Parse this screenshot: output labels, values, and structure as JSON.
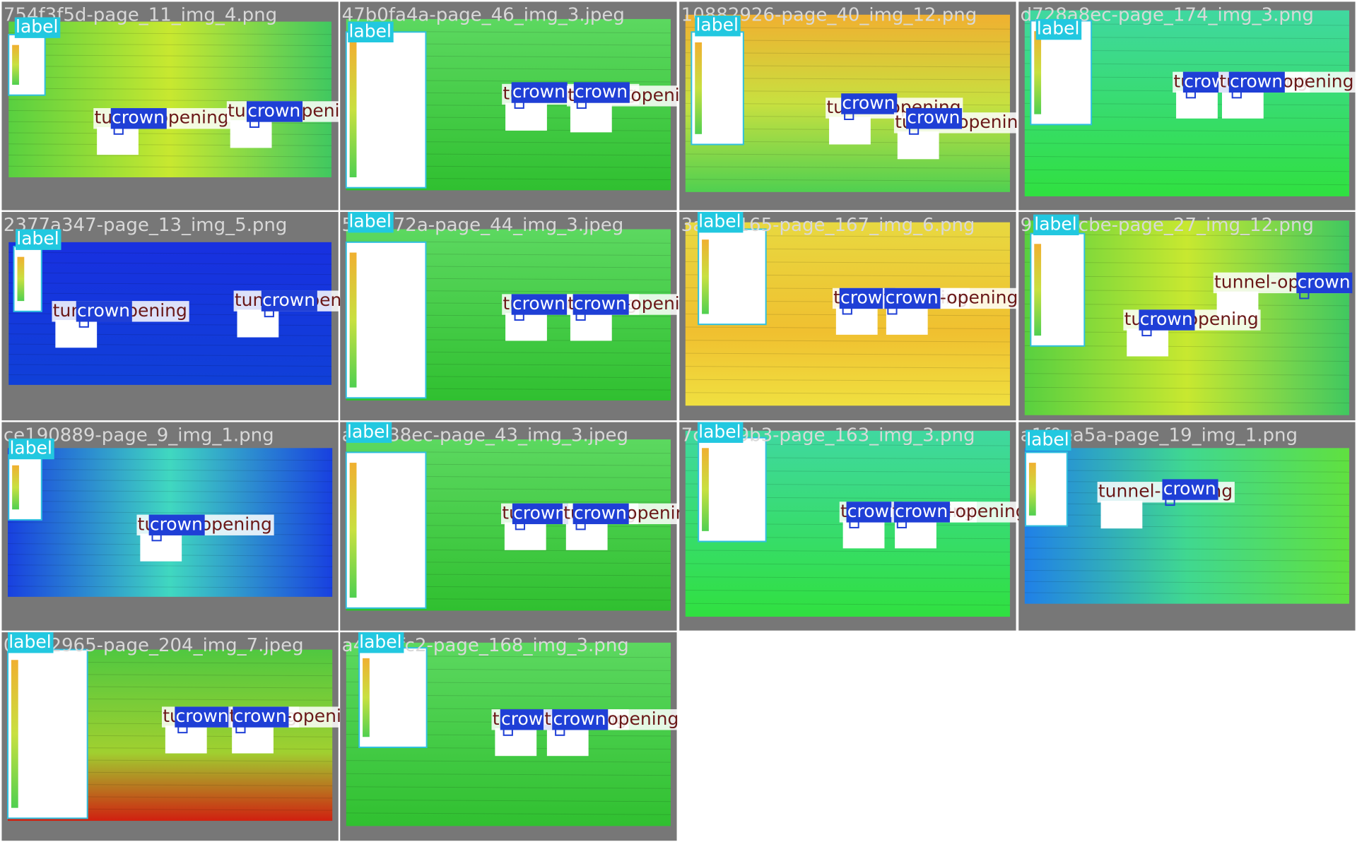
{
  "tiles": [
    {
      "filename": "754f3f5d-page_11_img_4.png",
      "labels": [
        "label",
        "tunnel-opening",
        "crown",
        "tunnel-opening",
        "crown"
      ]
    },
    {
      "filename": "47b0fa4a-page_46_img_3.jpeg",
      "labels": [
        "label",
        "tunnel-opening",
        "crown",
        "tunnel-opening",
        "crown"
      ]
    },
    {
      "filename": "10882926-page_40_img_12.png",
      "labels": [
        "label",
        "tunnel-opening",
        "crown",
        "tunnel-opening",
        "crown"
      ]
    },
    {
      "filename": "d728a8ec-page_174_img_3.png",
      "labels": [
        "label",
        "tunnel-opening",
        "crown",
        "tunnel-opening",
        "crown"
      ]
    },
    {
      "filename": "2377a347-page_13_img_5.png",
      "labels": [
        "label",
        "tunnel-opening",
        "crown",
        "tunnel-opening",
        "crown"
      ]
    },
    {
      "filename": "5f0c872a-page_44_img_3.jpeg",
      "labels": [
        "label",
        "tunnel-opening",
        "crown",
        "tunnel-opening",
        "crown"
      ]
    },
    {
      "filename": "3a1c7165-page_167_img_6.png",
      "labels": [
        "label",
        "tunnel-opening",
        "crown",
        "tunnel-opening",
        "crown"
      ]
    },
    {
      "filename": "9b4e2cbe-page_27_img_12.png",
      "labels": [
        "label",
        "tunnel-opening",
        "crown",
        "tunnel-opening",
        "crown"
      ]
    },
    {
      "filename": "ce190889-page_9_img_1.png",
      "labels": [
        "label",
        "tunnel-opening",
        "crown"
      ]
    },
    {
      "filename": "a6d438ec-page_43_img_3.jpeg",
      "labels": [
        "label",
        "tunnel-opening",
        "crown",
        "tunnel-opening",
        "crown"
      ]
    },
    {
      "filename": "7c52e9b3-page_163_img_3.png",
      "labels": [
        "label",
        "tunnel-opening",
        "crown",
        "tunnel-opening",
        "crown"
      ]
    },
    {
      "filename": "a1f0ea5a-page_19_img_1.png",
      "labels": [
        "label",
        "tunnel-opening",
        "crown"
      ]
    },
    {
      "filename": "0e1b2965-page_204_img_7.jpeg",
      "labels": [
        "label",
        "tunnel-opening",
        "crown",
        "tunnel-opening",
        "crown"
      ]
    },
    {
      "filename": "a43c5fc2-page_168_img_3.png",
      "labels": [
        "label",
        "tunnel-opening",
        "crown",
        "tunnel-opening",
        "crown"
      ]
    }
  ]
}
